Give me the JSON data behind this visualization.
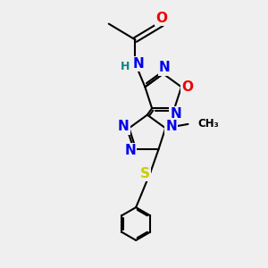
{
  "bg_color": "#efefef",
  "bond_color": "#000000",
  "atom_colors": {
    "N": "#0000ee",
    "O": "#ee0000",
    "S": "#cccc00",
    "C": "#000000",
    "H": "#008888"
  },
  "fig_width": 3.0,
  "fig_height": 3.0,
  "dpi": 100
}
